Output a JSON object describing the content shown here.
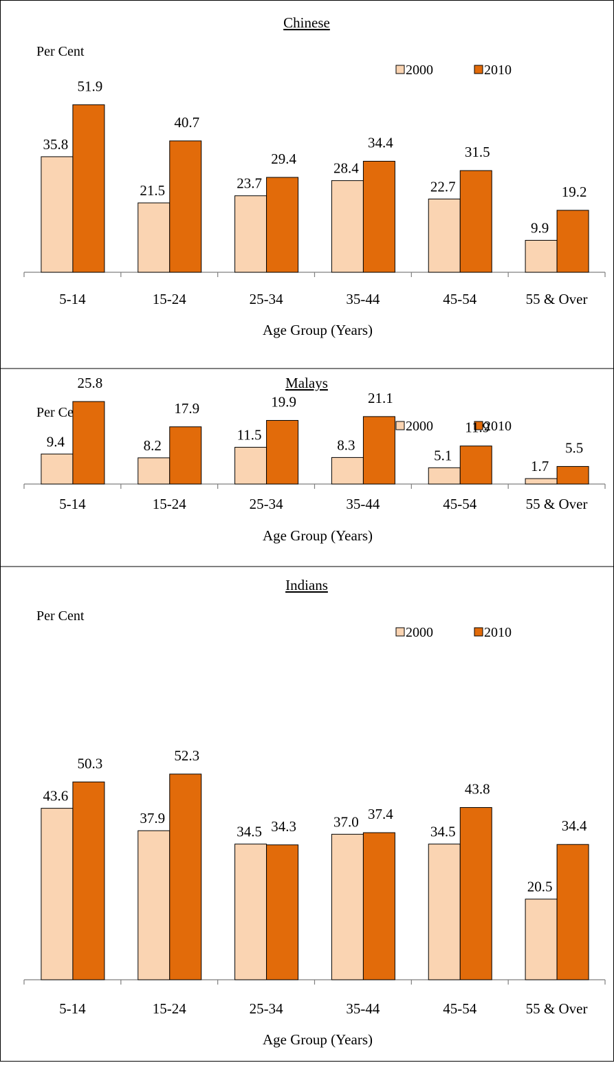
{
  "colors": {
    "series_2000": "#FAD4B2",
    "series_2010": "#E26B0A",
    "border": "#000000"
  },
  "chart_data": [
    {
      "type": "bar",
      "title": "Chinese",
      "ylabel": "Per Cent",
      "xlabel": "Age Group (Years)",
      "categories": [
        "5-14",
        "15-24",
        "25-34",
        "35-44",
        "45-54",
        "55 & Over"
      ],
      "series": [
        {
          "name": "2000",
          "values": [
            35.8,
            21.5,
            23.7,
            28.4,
            22.7,
            9.9
          ]
        },
        {
          "name": "2010",
          "values": [
            51.9,
            40.7,
            29.4,
            34.4,
            31.5,
            19.2
          ]
        }
      ],
      "legend": "top-right",
      "grid": false
    },
    {
      "type": "bar",
      "title": "Malays",
      "ylabel": "Per Cent",
      "xlabel": "Age Group (Years)",
      "categories": [
        "5-14",
        "15-24",
        "25-34",
        "35-44",
        "45-54",
        "55 & Over"
      ],
      "series": [
        {
          "name": "2000",
          "values": [
            9.4,
            8.2,
            11.5,
            8.3,
            5.1,
            1.7
          ]
        },
        {
          "name": "2010",
          "values": [
            25.8,
            17.9,
            19.9,
            21.1,
            11.9,
            5.5
          ]
        }
      ],
      "legend": "top-right",
      "grid": false
    },
    {
      "type": "bar",
      "title": "Indians",
      "ylabel": "Per Cent",
      "xlabel": "Age Group (Years)",
      "categories": [
        "5-14",
        "15-24",
        "25-34",
        "35-44",
        "45-54",
        "55 & Over"
      ],
      "series": [
        {
          "name": "2000",
          "values": [
            43.6,
            37.9,
            34.5,
            37.0,
            34.5,
            20.5
          ]
        },
        {
          "name": "2010",
          "values": [
            50.3,
            52.3,
            34.3,
            37.4,
            43.8,
            34.4
          ]
        }
      ],
      "legend": "top-right",
      "grid": false
    }
  ]
}
